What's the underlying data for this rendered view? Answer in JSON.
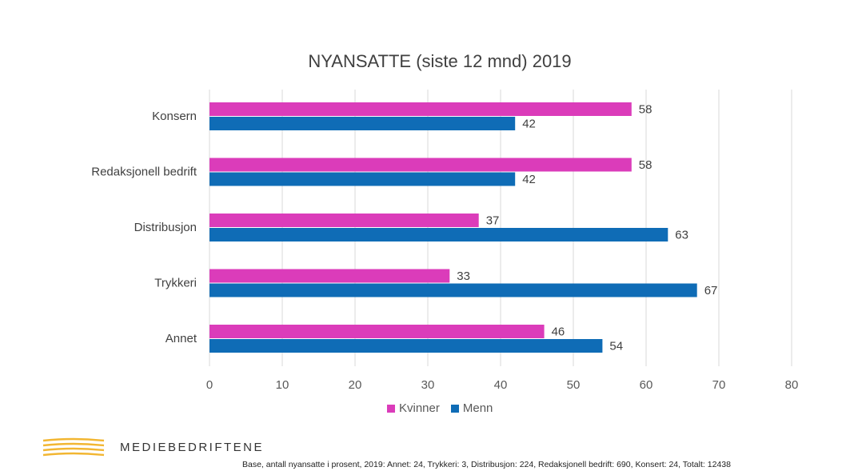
{
  "chart_data": {
    "type": "bar",
    "orientation": "horizontal",
    "title": "NYANSATTE (siste 12 mnd) 2019",
    "categories": [
      "Konsern",
      "Redaksjonell bedrift",
      "Distribusjon",
      "Trykkeri",
      "Annet"
    ],
    "series": [
      {
        "name": "Kvinner",
        "color": "#DB3CBA",
        "values": [
          58,
          58,
          37,
          33,
          46
        ]
      },
      {
        "name": "Menn",
        "color": "#0F6CB6",
        "values": [
          42,
          42,
          63,
          67,
          54
        ]
      }
    ],
    "xlim": [
      0,
      80
    ],
    "x_ticks": [
      "0",
      "10",
      "20",
      "30",
      "40",
      "50",
      "60",
      "70",
      "80"
    ],
    "grid": true,
    "legend_position": "bottom",
    "xlabel": "",
    "ylabel": ""
  },
  "branding": {
    "name": "MEDIEBEDRIFTENE",
    "logo_icon": "wave-stripes-icon",
    "logo_color": "#F2B632"
  },
  "footnote": "Base, antall nyansatte i prosent, 2019:  Annet: 24, Trykkeri: 3, Distribusjon: 224, Redaksjonell bedrift: 690, Konsert: 24, Totalt: 12438"
}
